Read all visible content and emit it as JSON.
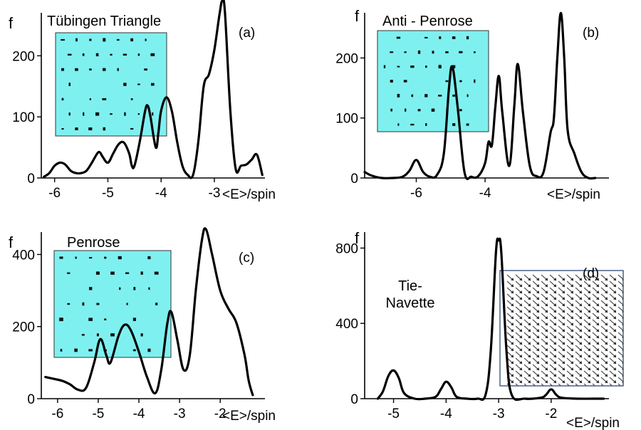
{
  "chart_data": [
    {
      "panel": "a",
      "type": "line",
      "tag": "(a)",
      "title": "Tübingen Triangle",
      "xlabel": "<E>/spin",
      "ylabel": "f",
      "xlim": [
        -6.25,
        -2.05
      ],
      "ylim": [
        0,
        275
      ],
      "xticks": [
        -6,
        -5,
        -4,
        -3
      ],
      "xtick_labels": [
        "-6",
        "-5",
        "-4",
        "-3"
      ],
      "yticks": [
        0,
        100,
        200
      ],
      "ytick_labels": [
        "0",
        "100",
        "200"
      ],
      "inset": {
        "style": "cyan-dots"
      },
      "series": [
        {
          "x": [
            -6.2,
            -6.1,
            -6.0,
            -5.9,
            -5.8,
            -5.7,
            -5.6,
            -5.5,
            -5.4,
            -5.3,
            -5.2,
            -5.15,
            -5.1,
            -5.0,
            -4.9,
            -4.8,
            -4.7,
            -4.6,
            -4.55,
            -4.5,
            -4.4,
            -4.3,
            -4.25,
            -4.2,
            -4.1,
            -4.05,
            -4.0,
            -3.9,
            -3.8,
            -3.7,
            -3.6,
            -3.5,
            -3.4,
            -3.3,
            -3.2,
            -3.1,
            -3.0,
            -2.9,
            -2.85,
            -2.8,
            -2.7,
            -2.6,
            -2.5,
            -2.4,
            -2.3,
            -2.2,
            -2.1
          ],
          "y": [
            2,
            8,
            20,
            25,
            22,
            12,
            8,
            8,
            12,
            25,
            40,
            42,
            35,
            25,
            40,
            55,
            58,
            40,
            20,
            20,
            60,
            110,
            118,
            100,
            50,
            75,
            110,
            132,
            110,
            60,
            20,
            5,
            5,
            60,
            150,
            170,
            210,
            270,
            290,
            270,
            110,
            15,
            20,
            22,
            30,
            38,
            5
          ]
        }
      ]
    },
    {
      "panel": "b",
      "type": "line",
      "tag": "(b)",
      "title": "Anti - Penrose",
      "xlabel": "<E>/spin",
      "ylabel": "f",
      "xlim": [
        -7.5,
        -0.4
      ],
      "ylim": [
        0,
        280
      ],
      "xticks": [
        -6,
        -4
      ],
      "xtick_labels": [
        "-6",
        "-4"
      ],
      "yticks": [
        0,
        100,
        200
      ],
      "ytick_labels": [
        "0",
        "100",
        "200"
      ],
      "inset": {
        "style": "cyan-dots"
      },
      "series": [
        {
          "x": [
            -7.5,
            -7.3,
            -7.0,
            -6.7,
            -6.4,
            -6.2,
            -6.0,
            -5.8,
            -5.6,
            -5.4,
            -5.2,
            -5.05,
            -4.95,
            -4.8,
            -4.6,
            -4.4,
            -4.2,
            -4.0,
            -3.9,
            -3.8,
            -3.7,
            -3.6,
            -3.5,
            -3.3,
            -3.15,
            -3.05,
            -2.9,
            -2.7,
            -2.5,
            -2.3,
            -2.1,
            -2.0,
            -1.9,
            -1.8,
            -1.7,
            -1.6,
            -1.4,
            -1.2,
            -1.0,
            -0.8
          ],
          "y": [
            10,
            4,
            0,
            0,
            2,
            12,
            30,
            10,
            2,
            5,
            40,
            150,
            185,
            120,
            10,
            2,
            3,
            25,
            60,
            55,
            120,
            170,
            110,
            20,
            120,
            190,
            110,
            20,
            3,
            10,
            75,
            100,
            200,
            275,
            200,
            80,
            40,
            10,
            0,
            0
          ]
        }
      ]
    },
    {
      "panel": "c",
      "type": "line",
      "tag": "(c)",
      "title": "Penrose",
      "xlabel": "<E>/spin",
      "ylabel": "f",
      "xlim": [
        -6.4,
        -0.9
      ],
      "ylim": [
        0,
        470
      ],
      "xticks": [
        -6,
        -5,
        -4,
        -3,
        -2
      ],
      "xtick_labels": [
        "-6",
        "-5",
        "-4",
        "-3",
        "-2"
      ],
      "yticks": [
        0,
        200,
        400
      ],
      "ytick_labels": [
        "0",
        "200",
        "400"
      ],
      "inset": {
        "style": "cyan-dots"
      },
      "series": [
        {
          "x": [
            -6.3,
            -6.1,
            -5.9,
            -5.7,
            -5.5,
            -5.3,
            -5.1,
            -4.95,
            -4.8,
            -4.7,
            -4.5,
            -4.35,
            -4.2,
            -4.0,
            -3.8,
            -3.6,
            -3.45,
            -3.3,
            -3.2,
            -3.05,
            -2.9,
            -2.75,
            -2.6,
            -2.45,
            -2.35,
            -2.2,
            -2.0,
            -1.8,
            -1.6,
            -1.4,
            -1.3,
            -1.2
          ],
          "y": [
            60,
            55,
            50,
            40,
            25,
            30,
            100,
            165,
            120,
            100,
            175,
            205,
            190,
            130,
            60,
            15,
            80,
            210,
            240,
            160,
            80,
            120,
            300,
            440,
            470,
            400,
            300,
            250,
            210,
            120,
            50,
            10
          ]
        }
      ]
    },
    {
      "panel": "d",
      "type": "line",
      "tag": "(d)",
      "title": "Tie- Navette",
      "title_lines": [
        "Tie-",
        "Navette"
      ],
      "xlabel": "<E>/spin",
      "ylabel": "f",
      "xlim": [
        -5.55,
        -0.9
      ],
      "ylim": [
        0,
        900
      ],
      "xticks": [
        -5,
        -4,
        -3,
        -2
      ],
      "xtick_labels": [
        "-5",
        "-4",
        "-3",
        "-2"
      ],
      "yticks": [
        0,
        400,
        800
      ],
      "ytick_labels": [
        "0",
        "400",
        "800"
      ],
      "inset": {
        "style": "grey-arrows"
      },
      "series": [
        {
          "x": [
            -5.3,
            -5.2,
            -5.1,
            -5.0,
            -4.9,
            -4.8,
            -4.6,
            -4.4,
            -4.2,
            -4.1,
            -4.0,
            -3.9,
            -3.8,
            -3.6,
            -3.4,
            -3.25,
            -3.15,
            -3.05,
            -3.0,
            -2.95,
            -2.85,
            -2.75,
            -2.5,
            -2.2,
            -2.1,
            -2.0,
            -1.9,
            -1.8,
            -1.5,
            -1.2,
            -1.0
          ],
          "y": [
            0,
            40,
            120,
            150,
            110,
            30,
            0,
            0,
            10,
            50,
            90,
            60,
            10,
            0,
            0,
            20,
            250,
            780,
            840,
            780,
            250,
            20,
            0,
            5,
            20,
            50,
            20,
            5,
            0,
            0,
            0
          ]
        }
      ]
    }
  ]
}
